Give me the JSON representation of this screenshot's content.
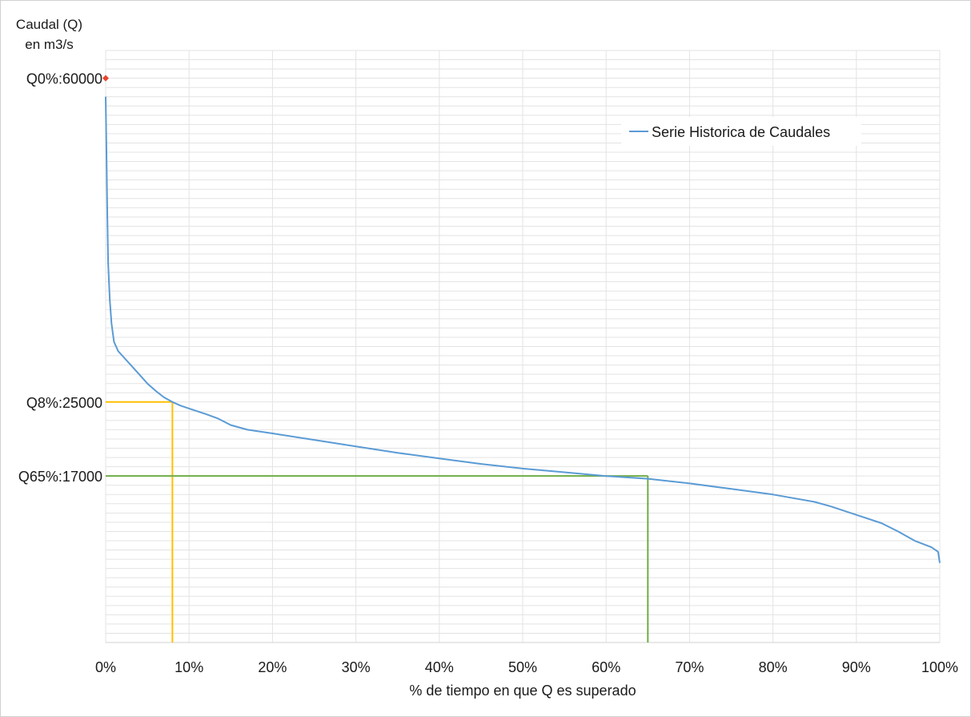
{
  "chart_data": {
    "type": "line",
    "title": "",
    "ylabel": "Caudal (Q)\nen m3/s",
    "xlabel": "% de tiempo en que Q es superado",
    "xlim": [
      0,
      100
    ],
    "ylim": [
      -1000,
      63000
    ],
    "x_ticks": [
      "0%",
      "10%",
      "20%",
      "30%",
      "40%",
      "50%",
      "60%",
      "70%",
      "80%",
      "90%",
      "100%"
    ],
    "grid": "horizontal and vertical",
    "legend": {
      "position": "top-right",
      "entries": [
        "Serie Historica de Caudales"
      ]
    },
    "series": [
      {
        "name": "Serie Historica de Caudales",
        "color": "#5b9bd5",
        "x": [
          0,
          0.1,
          0.2,
          0.3,
          0.5,
          0.7,
          1,
          1.5,
          2,
          3,
          4,
          5,
          6,
          7,
          8,
          9,
          10,
          12,
          13.5,
          15,
          17,
          20,
          25,
          30,
          35,
          40,
          45,
          50,
          55,
          60,
          65,
          70,
          75,
          80,
          85,
          87,
          90,
          93,
          95,
          97,
          99,
          99.8,
          100
        ],
        "y": [
          58000,
          52000,
          45000,
          40000,
          36000,
          33500,
          31500,
          30500,
          30000,
          29000,
          28000,
          27000,
          26200,
          25500,
          25000,
          24600,
          24300,
          23700,
          23200,
          22500,
          22000,
          21600,
          20900,
          20200,
          19500,
          18900,
          18300,
          17800,
          17400,
          17000,
          16700,
          16200,
          15600,
          15000,
          14200,
          13700,
          12800,
          11900,
          11000,
          10000,
          9300,
          8800,
          7600
        ]
      }
    ],
    "annotations": [
      {
        "label": "Q0%:60000",
        "x": 0,
        "y": 60000,
        "color": "#e8442e",
        "marker": "diamond"
      },
      {
        "label": "Q8%:25000",
        "x": 8,
        "y": 25000,
        "color": "#ffc000"
      },
      {
        "label": "Q65%:17000",
        "x": 65,
        "y": 17000,
        "color": "#70ad47"
      }
    ]
  }
}
